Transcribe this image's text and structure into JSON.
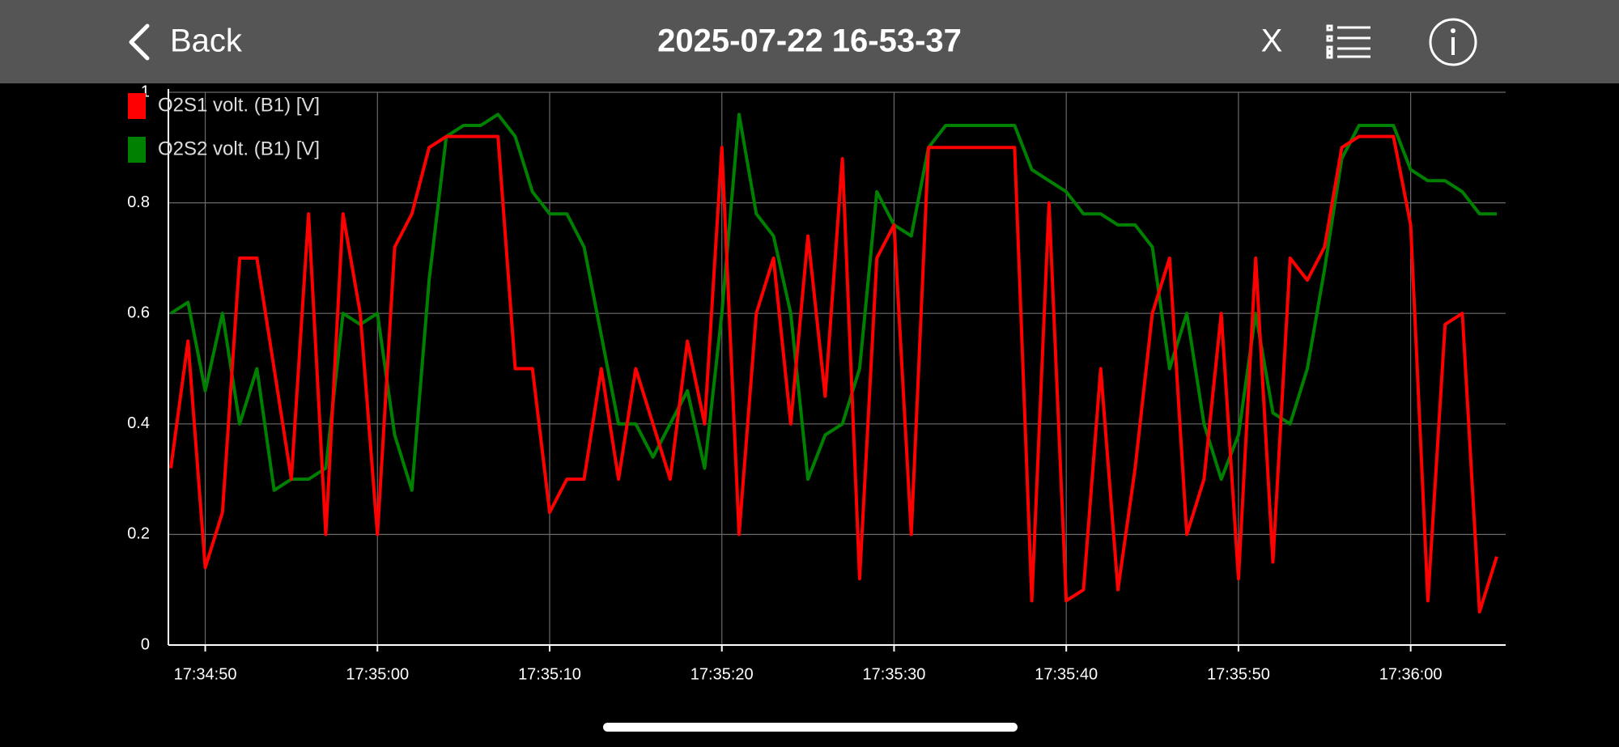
{
  "header": {
    "back": "Back",
    "title": "2025-07-22 16-53-37",
    "close": "X"
  },
  "chart_data": {
    "type": "line",
    "x": [
      "17:34:48",
      "17:34:49",
      "17:34:50",
      "17:34:51",
      "17:34:52",
      "17:34:53",
      "17:34:54",
      "17:34:55",
      "17:34:56",
      "17:34:57",
      "17:34:58",
      "17:34:59",
      "17:35:00",
      "17:35:01",
      "17:35:02",
      "17:35:03",
      "17:35:04",
      "17:35:05",
      "17:35:06",
      "17:35:07",
      "17:35:08",
      "17:35:09",
      "17:35:10",
      "17:35:11",
      "17:35:12",
      "17:35:13",
      "17:35:14",
      "17:35:15",
      "17:35:16",
      "17:35:17",
      "17:35:18",
      "17:35:19",
      "17:35:20",
      "17:35:21",
      "17:35:22",
      "17:35:23",
      "17:35:24",
      "17:35:25",
      "17:35:26",
      "17:35:27",
      "17:35:28",
      "17:35:29",
      "17:35:30",
      "17:35:31",
      "17:35:32",
      "17:35:33",
      "17:35:34",
      "17:35:35",
      "17:35:36",
      "17:35:37",
      "17:35:38",
      "17:35:39",
      "17:35:40",
      "17:35:41",
      "17:35:42",
      "17:35:43",
      "17:35:44",
      "17:35:45",
      "17:35:46",
      "17:35:47",
      "17:35:48",
      "17:35:49",
      "17:35:50",
      "17:35:51",
      "17:35:52",
      "17:35:53",
      "17:35:54",
      "17:35:55",
      "17:35:56",
      "17:35:57",
      "17:35:58",
      "17:35:59",
      "17:36:00",
      "17:36:01",
      "17:36:02",
      "17:36:03",
      "17:36:04",
      "17:36:05"
    ],
    "series": [
      {
        "name": "O2S1 volt. (B1) [V]",
        "color": "#ff0000",
        "values": [
          0.32,
          0.55,
          0.14,
          0.24,
          0.7,
          0.7,
          0.5,
          0.3,
          0.78,
          0.2,
          0.78,
          0.6,
          0.2,
          0.72,
          0.78,
          0.9,
          0.92,
          0.92,
          0.92,
          0.92,
          0.5,
          0.5,
          0.24,
          0.3,
          0.3,
          0.5,
          0.3,
          0.5,
          0.4,
          0.3,
          0.55,
          0.4,
          0.9,
          0.2,
          0.6,
          0.7,
          0.4,
          0.74,
          0.45,
          0.88,
          0.12,
          0.7,
          0.76,
          0.2,
          0.9,
          0.9,
          0.9,
          0.9,
          0.9,
          0.9,
          0.08,
          0.8,
          0.08,
          0.1,
          0.5,
          0.1,
          0.32,
          0.6,
          0.7,
          0.2,
          0.3,
          0.6,
          0.12,
          0.7,
          0.15,
          0.7,
          0.66,
          0.72,
          0.9,
          0.92,
          0.92,
          0.92,
          0.76,
          0.08,
          0.58,
          0.6,
          0.06,
          0.16
        ]
      },
      {
        "name": "O2S2 volt. (B1) [V]",
        "color": "#008000",
        "values": [
          0.6,
          0.62,
          0.46,
          0.6,
          0.4,
          0.5,
          0.28,
          0.3,
          0.3,
          0.32,
          0.6,
          0.58,
          0.6,
          0.38,
          0.28,
          0.66,
          0.92,
          0.94,
          0.94,
          0.96,
          0.92,
          0.82,
          0.78,
          0.78,
          0.72,
          0.56,
          0.4,
          0.4,
          0.34,
          0.4,
          0.46,
          0.32,
          0.6,
          0.96,
          0.78,
          0.74,
          0.6,
          0.3,
          0.38,
          0.4,
          0.5,
          0.82,
          0.76,
          0.74,
          0.9,
          0.94,
          0.94,
          0.94,
          0.94,
          0.94,
          0.86,
          0.84,
          0.82,
          0.78,
          0.78,
          0.76,
          0.76,
          0.72,
          0.5,
          0.6,
          0.4,
          0.3,
          0.38,
          0.6,
          0.42,
          0.4,
          0.5,
          0.68,
          0.88,
          0.94,
          0.94,
          0.94,
          0.86,
          0.84,
          0.84,
          0.82,
          0.78,
          0.78
        ]
      }
    ],
    "xlim": [
      "17:34:48",
      "17:36:05"
    ],
    "xticks": [
      "17:34:50",
      "17:35:00",
      "17:35:10",
      "17:35:20",
      "17:35:30",
      "17:35:40",
      "17:35:50",
      "17:36:00"
    ],
    "ylim": [
      0,
      1
    ],
    "yticks": [
      0,
      0.2,
      0.4,
      0.6,
      0.8,
      1
    ],
    "grid": true
  }
}
